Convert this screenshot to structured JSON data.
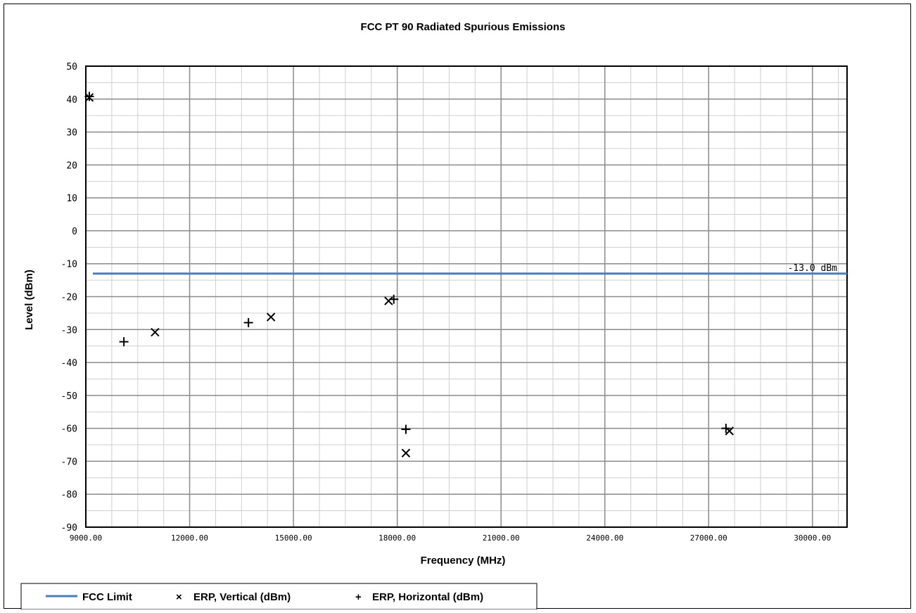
{
  "chart_data": {
    "type": "scatter",
    "title": "FCC PT 90 Radiated Spurious Emissions",
    "xlabel": "Frequency (MHz)",
    "ylabel": "Level (dBm)",
    "xlim": [
      9000,
      31000
    ],
    "ylim": [
      -90,
      50
    ],
    "x_ticks": [
      "9000.00",
      "12000.00",
      "15000.00",
      "18000.00",
      "21000.00",
      "24000.00",
      "27000.00",
      "30000.00"
    ],
    "y_ticks": [
      "50",
      "40",
      "30",
      "20",
      "10",
      "0",
      "-10",
      "-20",
      "-30",
      "-40",
      "-50",
      "-60",
      "-70",
      "-80",
      "-90"
    ],
    "grid": true,
    "legend_position": "bottom",
    "limit": {
      "name": "FCC Limit",
      "value": -13.0,
      "label": "-13.0 dBm",
      "color": "#4a7ebb"
    },
    "series": [
      {
        "name": "ERP, Vertical (dBm)",
        "marker": "x",
        "color": "#000000",
        "points": [
          {
            "x": 9100,
            "y": 40.5
          },
          {
            "x": 11000,
            "y": -30.8
          },
          {
            "x": 14350,
            "y": -26.2
          },
          {
            "x": 17750,
            "y": -21.3
          },
          {
            "x": 18250,
            "y": -67.5
          },
          {
            "x": 27600,
            "y": -60.8
          }
        ]
      },
      {
        "name": "ERP, Horizontal (dBm)",
        "marker": "+",
        "color": "#000000",
        "points": [
          {
            "x": 9100,
            "y": 40.8
          },
          {
            "x": 10100,
            "y": -33.7
          },
          {
            "x": 13700,
            "y": -27.9
          },
          {
            "x": 17900,
            "y": -20.8
          },
          {
            "x": 18250,
            "y": -60.3
          },
          {
            "x": 27500,
            "y": -60.0
          }
        ]
      }
    ]
  },
  "legend": {
    "limit_label": "FCC Limit",
    "vertical_symbol": "×",
    "vertical_label": "ERP, Vertical (dBm)",
    "horizontal_symbol": "+",
    "horizontal_label": "ERP, Horizontal (dBm)"
  }
}
